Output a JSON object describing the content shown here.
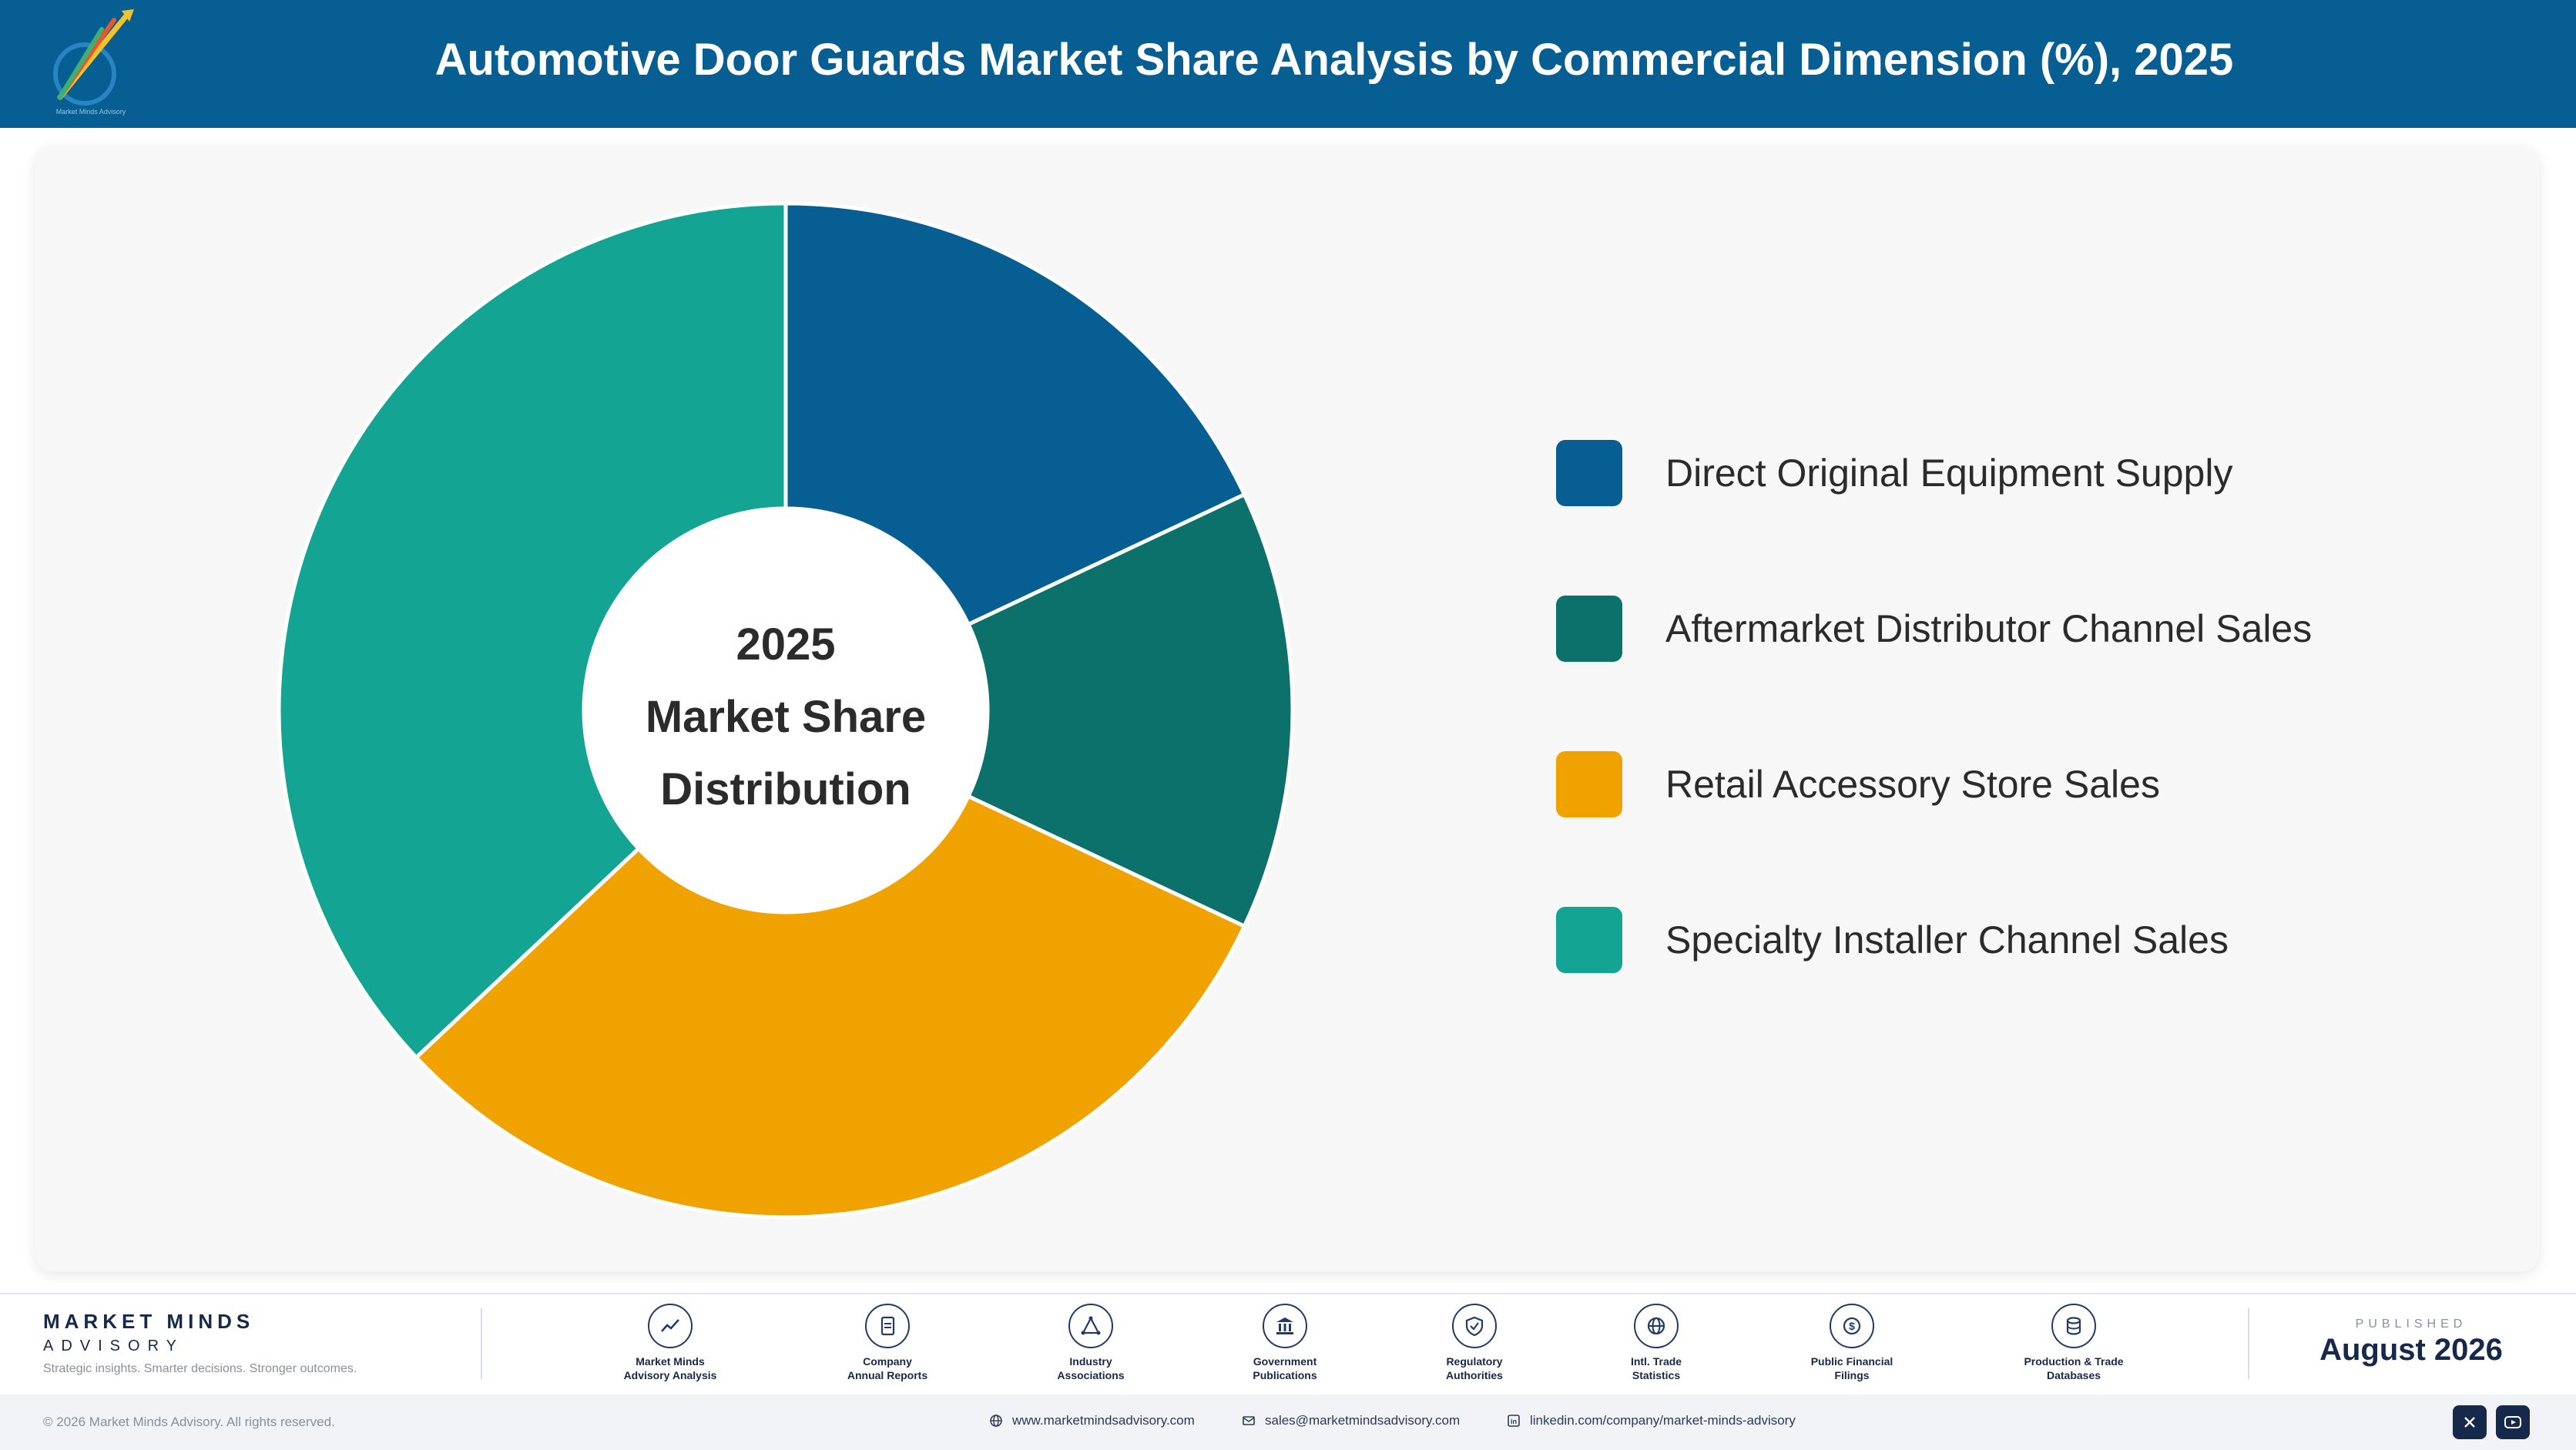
{
  "header": {
    "title": "Automotive Door Guards Market Share Analysis by Commercial Dimension (%), 2025",
    "logo_caption": "Market Minds Advisory"
  },
  "chart_data": {
    "type": "pie",
    "variant": "donut",
    "center_label": [
      "2025",
      "Market Share",
      "Distribution"
    ],
    "start_angle_deg": 0,
    "categories": [
      "Direct Original Equipment Supply",
      "Aftermarket Distributor Channel Sales",
      "Retail Accessory Store Sales",
      "Specialty Installer Channel Sales"
    ],
    "values": [
      18,
      14,
      31,
      37
    ],
    "colors": [
      "#065e92",
      "#0c716a",
      "#f0a201",
      "#13a493"
    ],
    "legend_position": "right"
  },
  "footer": {
    "brand_name": "MARKET MINDS",
    "brand_sub": "ADVISORY",
    "tagline": "Strategic insights. Smarter decisions. Stronger outcomes.",
    "sources": [
      {
        "icon": "trend-line-icon",
        "label": "Market Minds\nAdvisory Analysis"
      },
      {
        "icon": "document-icon",
        "label": "Company\nAnnual Reports"
      },
      {
        "icon": "network-icon",
        "label": "Industry\nAssociations"
      },
      {
        "icon": "government-building-icon",
        "label": "Government\nPublications"
      },
      {
        "icon": "shield-check-icon",
        "label": "Regulatory\nAuthorities"
      },
      {
        "icon": "globe-icon",
        "label": "Intl. Trade\nStatistics"
      },
      {
        "icon": "currency-icon",
        "label": "Public Financial\nFilings"
      },
      {
        "icon": "database-icon",
        "label": "Production & Trade\nDatabases"
      }
    ],
    "published_label": "PUBLISHED",
    "published_date": "August 2026",
    "copyright": "© 2026 Market Minds Advisory. All rights reserved.",
    "website": "www.marketmindsadvisory.com",
    "email": "sales@marketmindsadvisory.com",
    "linkedin": "linkedin.com/company/market-minds-advisory",
    "social_icons": [
      "x-icon",
      "youtube-icon"
    ]
  }
}
